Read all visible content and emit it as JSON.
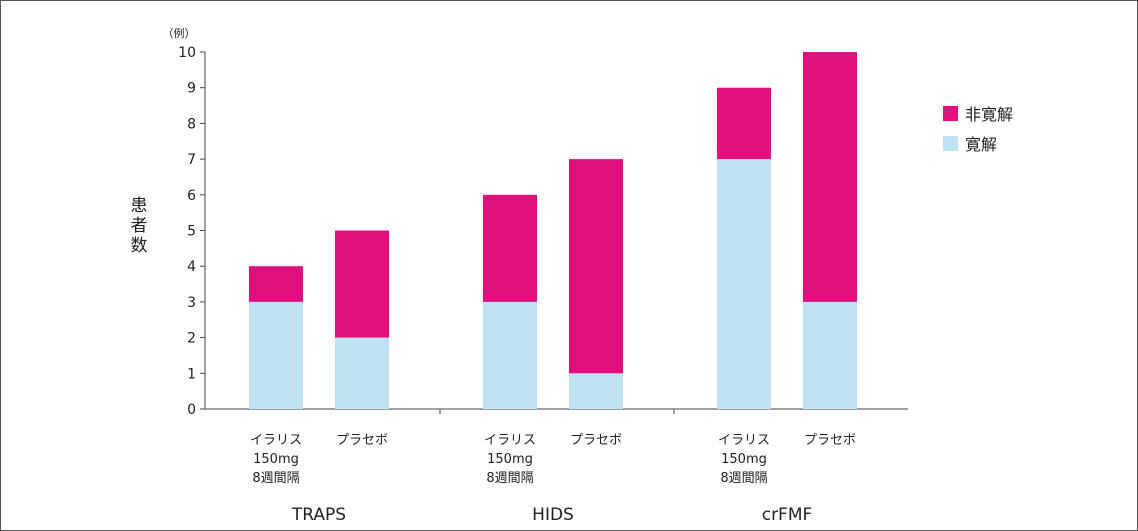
{
  "chart_data": {
    "type": "bar",
    "stacked": true,
    "ylabel": "患者数",
    "yunit": "（例）",
    "ylim": [
      0,
      10
    ],
    "yticks": [
      0,
      1,
      2,
      3,
      4,
      5,
      6,
      7,
      8,
      9,
      10
    ],
    "grid": false,
    "legend": "right",
    "groups": [
      {
        "name": "TRAPS",
        "bars": [
          {
            "label": [
              "イラリス",
              "150mg",
              "8週間隔"
            ],
            "values": {
              "remission": 3,
              "non_remission": 1
            }
          },
          {
            "label": [
              "プラセボ"
            ],
            "values": {
              "remission": 2,
              "non_remission": 3
            }
          }
        ]
      },
      {
        "name": "HIDS",
        "bars": [
          {
            "label": [
              "イラリス",
              "150mg",
              "8週間隔"
            ],
            "values": {
              "remission": 3,
              "non_remission": 3
            }
          },
          {
            "label": [
              "プラセボ"
            ],
            "values": {
              "remission": 1,
              "non_remission": 6
            }
          }
        ]
      },
      {
        "name": "crFMF",
        "bars": [
          {
            "label": [
              "イラリス",
              "150mg",
              "8週間隔"
            ],
            "values": {
              "remission": 7,
              "non_remission": 2
            }
          },
          {
            "label": [
              "プラセボ"
            ],
            "values": {
              "remission": 3,
              "non_remission": 7
            }
          }
        ]
      }
    ],
    "series": [
      {
        "key": "non_remission",
        "name": "非寛解",
        "color": "#e0117f"
      },
      {
        "key": "remission",
        "name": "寛解",
        "color": "#bde3f2"
      }
    ]
  }
}
